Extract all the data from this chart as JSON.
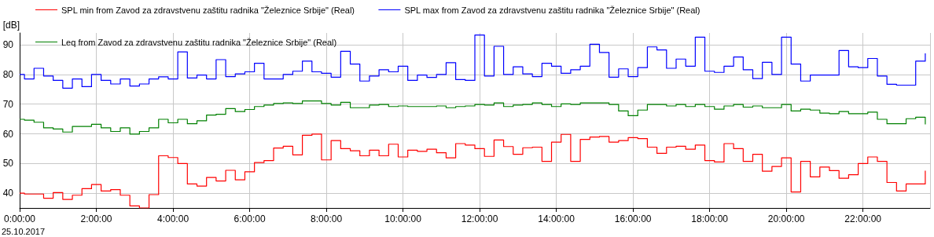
{
  "chart_data": {
    "type": "step",
    "ylabel": "[dB]",
    "annotations": [
      "25.10.2017"
    ],
    "x": [
      0,
      0.125,
      0.375,
      0.625,
      0.875,
      1.125,
      1.375,
      1.625,
      1.875,
      2.125,
      2.375,
      2.625,
      2.875,
      3.125,
      3.375,
      3.625,
      3.875,
      4.125,
      4.375,
      4.625,
      4.875,
      5.125,
      5.375,
      5.625,
      5.875,
      6.125,
      6.375,
      6.625,
      6.875,
      7.125,
      7.375,
      7.625,
      7.875,
      8.125,
      8.375,
      8.625,
      8.875,
      9.125,
      9.375,
      9.625,
      9.875,
      10.125,
      10.375,
      10.625,
      10.875,
      11.125,
      11.375,
      11.625,
      11.875,
      12.125,
      12.375,
      12.625,
      12.875,
      13.125,
      13.375,
      13.625,
      13.875,
      14.125,
      14.375,
      14.625,
      14.875,
      15.125,
      15.375,
      15.625,
      15.875,
      16.125,
      16.375,
      16.625,
      16.875,
      17.125,
      17.375,
      17.625,
      17.875,
      18.125,
      18.375,
      18.625,
      18.875,
      19.125,
      19.375,
      19.625,
      19.875,
      20.125,
      20.375,
      20.625,
      20.875,
      21.125,
      21.375,
      21.625,
      21.875,
      22.125,
      22.375,
      22.625,
      22.875,
      23.125,
      23.375,
      23.625
    ],
    "series": [
      {
        "name": "SPL min from Zavod za zdravstvenu zaštitu radnika \"Železnice Srbije\" (Real)",
        "color": "#ff0000",
        "values": [
          40,
          39.7,
          39.7,
          38.3,
          40.2,
          37.9,
          39.3,
          41.5,
          42.9,
          40.7,
          41.2,
          39.3,
          35.7,
          35,
          39.5,
          52.6,
          52,
          50,
          43.1,
          42.4,
          45.3,
          44.1,
          47.7,
          44.5,
          47.2,
          50.3,
          51,
          55.2,
          55.8,
          52.9,
          59.5,
          59.9,
          51.2,
          57.7,
          55,
          54.3,
          52.6,
          54.5,
          52.6,
          56.5,
          52.2,
          54.5,
          54.1,
          54.8,
          53.6,
          51.9,
          56.7,
          56.2,
          55,
          52.4,
          57.9,
          55.7,
          53.1,
          55.3,
          55.5,
          50.7,
          57.2,
          59.8,
          50.7,
          58.1,
          58.9,
          59.1,
          57.2,
          57.7,
          58.7,
          58.4,
          55.5,
          53.4,
          55.5,
          55.8,
          54.8,
          56.2,
          51,
          50.5,
          56.7,
          55,
          50.7,
          53.1,
          47.4,
          49,
          51.9,
          40.4,
          50.7,
          45.5,
          48.8,
          47.6,
          45,
          46.2,
          50,
          52.2,
          50.7,
          43.6,
          40.7,
          43.1,
          43.1,
          47.6
        ]
      },
      {
        "name": "SPL max from Zavod za zdravstvenu zaštitu radnika \"Železnice Srbije\" (Real)",
        "color": "#0000ff",
        "values": [
          80,
          78.5,
          82.1,
          79.5,
          78,
          75.4,
          78.5,
          75.9,
          80,
          78,
          76.8,
          78.5,
          76.1,
          76.8,
          78.5,
          79.2,
          78.5,
          87.6,
          78.8,
          79.8,
          78.5,
          85,
          79.3,
          80.2,
          80.9,
          83.8,
          78.5,
          78.5,
          80,
          81.1,
          84.5,
          80.9,
          80.4,
          79.1,
          87.8,
          83.5,
          77.8,
          79.5,
          81.6,
          80.9,
          82.8,
          78,
          79.8,
          79,
          80,
          84,
          78.3,
          78,
          93.3,
          79.5,
          89.5,
          80,
          82.6,
          80.2,
          79.3,
          83.8,
          82.8,
          80.4,
          81.6,
          82.8,
          90.2,
          87.4,
          79.1,
          81.9,
          79.3,
          82.3,
          89.3,
          88.3,
          82.1,
          85.2,
          82.8,
          92.6,
          81.1,
          80.7,
          82.8,
          85.9,
          81.6,
          78.6,
          84.1,
          80,
          92.6,
          83.5,
          77.8,
          79.8,
          79.8,
          79.8,
          88.1,
          82.6,
          82.3,
          85.4,
          79.5,
          76.7,
          76.4,
          76.4,
          84.5,
          87.1
        ]
      },
      {
        "name": "Leq from Zavod za zdravstvenu zaštitu radnika \"Železnice Srbije\" (Real)",
        "color": "#008000",
        "values": [
          64.9,
          64.6,
          63.9,
          62,
          61.6,
          60.6,
          62.5,
          62.5,
          63.2,
          62,
          60.8,
          62,
          59.9,
          60.8,
          62,
          64.9,
          63.7,
          64.9,
          63.4,
          64.4,
          66.3,
          66.6,
          68.5,
          67.5,
          68.2,
          69.2,
          69.7,
          70.2,
          70.4,
          70.2,
          71.1,
          71.1,
          70.2,
          69.7,
          70.6,
          68.8,
          68.8,
          69.7,
          69.9,
          69.2,
          69.4,
          69.2,
          69.2,
          69.2,
          69.4,
          68.8,
          69.2,
          69.4,
          69.9,
          69.7,
          70.4,
          69.2,
          69.7,
          69.9,
          70.4,
          69.9,
          69.2,
          70.1,
          69.9,
          70.4,
          70.4,
          70.4,
          69.9,
          67.7,
          66.1,
          68,
          69.9,
          69.9,
          69.4,
          69.9,
          69.2,
          69.9,
          69.2,
          68.3,
          69.4,
          69.9,
          69,
          69.4,
          68.8,
          68.8,
          69.9,
          67.7,
          68.3,
          68,
          67,
          66.8,
          67.5,
          66.8,
          66.8,
          67.3,
          64.9,
          63.4,
          63.4,
          65.1,
          65.6,
          63.2
        ]
      }
    ],
    "xlim": [
      0,
      23.75
    ],
    "xticks": [
      {
        "value": 0,
        "label": "0:00:00"
      },
      {
        "value": 2,
        "label": "2:00:00"
      },
      {
        "value": 4,
        "label": "4:00:00"
      },
      {
        "value": 6,
        "label": "6:00:00"
      },
      {
        "value": 8,
        "label": "8:00:00"
      },
      {
        "value": 10,
        "label": "10:00:00"
      },
      {
        "value": 12,
        "label": "12:00:00"
      },
      {
        "value": 14,
        "label": "14:00:00"
      },
      {
        "value": 16,
        "label": "16:00:00"
      },
      {
        "value": 18,
        "label": "18:00:00"
      },
      {
        "value": 20,
        "label": "20:00:00"
      },
      {
        "value": 22,
        "label": "22:00:00"
      }
    ],
    "ylim": [
      35,
      94
    ],
    "yticks": [
      40,
      50,
      60,
      70,
      80,
      90
    ],
    "grid": true,
    "legend": "top left"
  }
}
